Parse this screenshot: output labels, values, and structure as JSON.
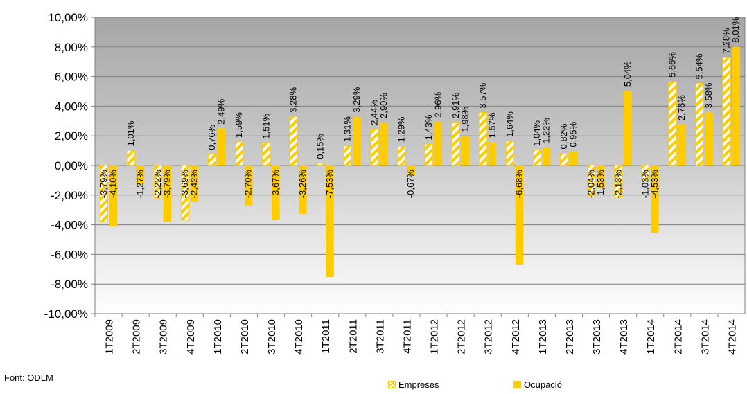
{
  "source_note": "Font: ODLM",
  "legend": {
    "empreses_label": "Empreses",
    "ocupacio_label": "Ocupació"
  },
  "colors": {
    "bar": "#FFCC00",
    "plot_top": "#A6A6A6",
    "plot_bottom": "#FFFFFF",
    "grid": "#808080"
  },
  "chart_data": {
    "type": "bar",
    "categories": [
      "1T2009",
      "2T2009",
      "3T2009",
      "4T2009",
      "1T2010",
      "2T2010",
      "3T2010",
      "4T2010",
      "1T2011",
      "2T2011",
      "3T2011",
      "4T2011",
      "1T2012",
      "2T2012",
      "3T2012",
      "4T2012",
      "1T2013",
      "2T2013",
      "3T2013",
      "4T2013",
      "1T2014",
      "2T2014",
      "3T2014",
      "4T2014"
    ],
    "series": [
      {
        "name": "Empreses",
        "pattern": "diagonal-stripes",
        "values": [
          -3.79,
          1.01,
          -2.22,
          -3.69,
          0.76,
          1.59,
          1.51,
          3.28,
          0.15,
          1.31,
          2.44,
          1.29,
          1.43,
          2.91,
          3.57,
          1.64,
          1.04,
          0.82,
          -2.04,
          -2.13,
          -1.03,
          5.66,
          5.54,
          7.28
        ],
        "labels": [
          "-3,79%",
          "1,01%",
          "-2,22%",
          "-3,69%",
          "0,76%",
          "1,59%",
          "1,51%",
          "3,28%",
          "0,15%",
          "1,31%",
          "2,44%",
          "1,29%",
          "1,43%",
          "2,91%",
          "3,57%",
          "1,64%",
          "1,04%",
          "0,82%",
          "-2,04%",
          "-2,13%",
          "-1,03%",
          "5,66%",
          "5,54%",
          "7,28%"
        ]
      },
      {
        "name": "Ocupació",
        "pattern": "solid",
        "values": [
          -4.1,
          -1.27,
          -3.79,
          -2.42,
          2.49,
          -2.7,
          -3.67,
          -3.26,
          -7.53,
          3.29,
          2.9,
          -0.67,
          2.96,
          1.98,
          1.57,
          -6.68,
          1.22,
          0.95,
          -1.53,
          5.04,
          -4.53,
          2.76,
          3.58,
          8.01
        ],
        "labels": [
          "-4,10%",
          "-1,27%",
          "-3,79%",
          "-2,42%",
          "2,49%",
          "-2,70%",
          "-3,67%",
          "-3,26%",
          "-7,53%",
          "3,29%",
          "2,90%",
          "-0,67%",
          "2,96%",
          "1,98%",
          "1,57%",
          "-6,68%",
          "1,22%",
          "0,95%",
          "-1,53%",
          "5,04%",
          "-4,53%",
          "2,76%",
          "3,58%",
          "8,01%"
        ]
      }
    ],
    "y_ticks": [
      "10,00%",
      "8,00%",
      "6,00%",
      "4,00%",
      "2,00%",
      "0,00%",
      "-2,00%",
      "-4,00%",
      "-6,00%",
      "-8,00%",
      "-10,00%"
    ],
    "ylim": [
      -10,
      10
    ],
    "grid": true,
    "legend_position": "bottom"
  }
}
